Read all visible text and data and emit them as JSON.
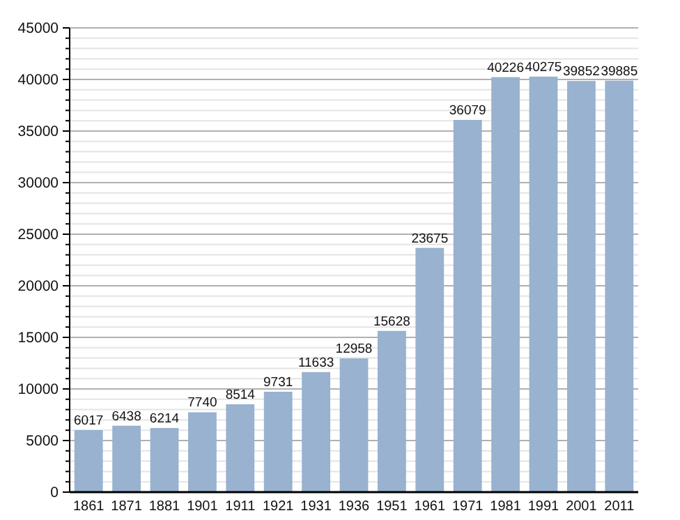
{
  "chart_data": {
    "type": "bar",
    "categories": [
      "1861",
      "1871",
      "1881",
      "1901",
      "1911",
      "1921",
      "1931",
      "1936",
      "1951",
      "1961",
      "1971",
      "1981",
      "1991",
      "2001",
      "2011"
    ],
    "values": [
      6017,
      6438,
      6214,
      7740,
      8514,
      9731,
      11633,
      12958,
      15628,
      23675,
      36079,
      40226,
      40275,
      39852,
      39885
    ],
    "color": "#98b2cf",
    "ylim": [
      0,
      45000
    ],
    "yticks": [
      0,
      {
        "value": 1000,
        "label": null
      },
      {
        "value": 2000,
        "label": null
      },
      {
        "value": 3000,
        "label": null
      },
      {
        "value": 4000,
        "label": null
      },
      5000,
      {
        "value": 6000,
        "label": null
      },
      {
        "value": 7000,
        "label": null
      },
      {
        "value": 8000,
        "label": null
      },
      {
        "value": 9000,
        "label": null
      },
      10000,
      {
        "value": 11000,
        "label": null
      },
      {
        "value": 12000,
        "label": null
      },
      {
        "value": 13000,
        "label": null
      },
      {
        "value": 14000,
        "label": null
      },
      15000,
      {
        "value": 16000,
        "label": null
      },
      {
        "value": 17000,
        "label": null
      },
      {
        "value": 18000,
        "label": null
      },
      {
        "value": 19000,
        "label": null
      },
      20000,
      {
        "value": 21000,
        "label": null
      },
      {
        "value": 22000,
        "label": null
      },
      {
        "value": 23000,
        "label": null
      },
      {
        "value": 24000,
        "label": null
      },
      25000,
      {
        "value": 26000,
        "label": null
      },
      {
        "value": 27000,
        "label": null
      },
      {
        "value": 28000,
        "label": null
      },
      {
        "value": 29000,
        "label": null
      },
      30000,
      {
        "value": 31000,
        "label": null
      },
      {
        "value": 32000,
        "label": null
      },
      {
        "value": 33000,
        "label": null
      },
      {
        "value": 34000,
        "label": null
      },
      35000,
      {
        "value": 36000,
        "label": null
      },
      {
        "value": 37000,
        "label": null
      },
      {
        "value": 38000,
        "label": null
      },
      {
        "value": 39000,
        "label": null
      },
      40000,
      {
        "value": 41000,
        "label": null
      },
      {
        "value": 42000,
        "label": null
      },
      {
        "value": 43000,
        "label": null
      },
      {
        "value": 44000,
        "label": null
      },
      45000
    ],
    "grid": true,
    "data_labels": true
  }
}
